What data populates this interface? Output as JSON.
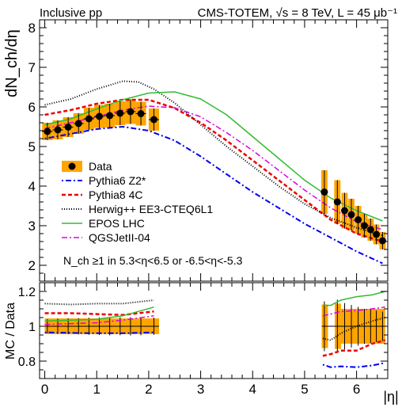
{
  "header": {
    "left": "Inclusive pp",
    "right": "CMS-TOTEM, √s = 8 TeV, L = 45 μb⁻¹"
  },
  "chart_data": [
    {
      "type": "line",
      "panel": "top",
      "ylabel": "dN_ch/dη",
      "xlim": [
        -0.1,
        6.6
      ],
      "ylim": [
        1.6,
        8.2
      ],
      "yticks": [
        "2",
        "3",
        "4",
        "5",
        "6",
        "7",
        "8"
      ],
      "annotation": "N_ch ≥1 in 5.3<η<6.5 or -6.5<η<-5.3",
      "legend_position": "middle-left",
      "data": {
        "name": "Data",
        "color": "#ffa500",
        "points": [
          {
            "x": 0.05,
            "y": 5.38,
            "sys": 0.22
          },
          {
            "x": 0.25,
            "y": 5.42,
            "sys": 0.24
          },
          {
            "x": 0.45,
            "y": 5.49,
            "sys": 0.25
          },
          {
            "x": 0.65,
            "y": 5.58,
            "sys": 0.26
          },
          {
            "x": 0.85,
            "y": 5.7,
            "sys": 0.28
          },
          {
            "x": 1.05,
            "y": 5.76,
            "sys": 0.29
          },
          {
            "x": 1.25,
            "y": 5.78,
            "sys": 0.3
          },
          {
            "x": 1.45,
            "y": 5.84,
            "sys": 0.3
          },
          {
            "x": 1.65,
            "y": 5.88,
            "sys": 0.31
          },
          {
            "x": 1.85,
            "y": 5.83,
            "sys": 0.3
          },
          {
            "x": 2.1,
            "y": 5.68,
            "sys": 0.28
          },
          {
            "x": 5.38,
            "y": 3.85,
            "sys": 0.55
          },
          {
            "x": 5.63,
            "y": 3.6,
            "sys": 0.55
          },
          {
            "x": 5.77,
            "y": 3.38,
            "sys": 0.45
          },
          {
            "x": 5.9,
            "y": 3.28,
            "sys": 0.4
          },
          {
            "x": 6.03,
            "y": 3.15,
            "sys": 0.35
          },
          {
            "x": 6.15,
            "y": 3.0,
            "sys": 0.3
          },
          {
            "x": 6.27,
            "y": 2.9,
            "sys": 0.28
          },
          {
            "x": 6.38,
            "y": 2.78,
            "sys": 0.25
          },
          {
            "x": 6.5,
            "y": 2.62,
            "sys": 0.22
          }
        ]
      },
      "series": [
        {
          "name": "Pythia6 Z2*",
          "color": "#0000ee",
          "dash": "2,3,7,3",
          "width": 2,
          "x": [
            0,
            0.5,
            1.0,
            1.5,
            2.0,
            2.5,
            3.0,
            3.5,
            4.0,
            4.5,
            5.0,
            5.5,
            6.0,
            6.5
          ],
          "y": [
            5.2,
            5.32,
            5.44,
            5.5,
            5.4,
            5.15,
            4.75,
            4.3,
            3.85,
            3.45,
            3.05,
            2.7,
            2.35,
            2.05
          ]
        },
        {
          "name": "Pythia8 4C",
          "color": "#ee0000",
          "dash": "5,3",
          "width": 2.5,
          "x": [
            0,
            0.5,
            1.0,
            1.5,
            2.0,
            2.5,
            3.0,
            3.5,
            4.0,
            4.5,
            5.0,
            5.5,
            6.0,
            6.5
          ],
          "y": [
            5.8,
            5.92,
            6.08,
            6.18,
            6.18,
            5.97,
            5.6,
            5.15,
            4.65,
            4.15,
            3.65,
            3.15,
            2.8,
            2.6
          ]
        },
        {
          "name": "Herwig++ EE3-CTEQ6L1",
          "color": "#000000",
          "dash": "1,2",
          "width": 2,
          "x": [
            0,
            0.5,
            1.0,
            1.5,
            1.8,
            2.1,
            2.5,
            3.0,
            3.5,
            4.0,
            4.5,
            5.0,
            5.5,
            6.0,
            6.5
          ],
          "y": [
            6.05,
            6.2,
            6.45,
            6.65,
            6.63,
            6.45,
            6.1,
            5.55,
            5.0,
            4.5,
            4.0,
            3.55,
            3.2,
            2.95,
            2.75
          ]
        },
        {
          "name": "EPOS LHC",
          "color": "#33bb33",
          "dash": "",
          "width": 1.5,
          "x": [
            0,
            0.5,
            1.0,
            1.5,
            2.0,
            2.5,
            3.0,
            3.5,
            4.0,
            4.5,
            5.0,
            5.5,
            6.0,
            6.5
          ],
          "y": [
            5.55,
            5.7,
            5.95,
            6.18,
            6.35,
            6.38,
            6.2,
            5.8,
            5.25,
            4.7,
            4.15,
            3.7,
            3.38,
            3.12
          ]
        },
        {
          "name": "QGSJetII-04",
          "color": "#dd00dd",
          "dash": "7,3,2,3",
          "width": 1.5,
          "x": [
            0,
            0.5,
            1.0,
            1.5,
            2.0,
            2.5,
            3.0,
            3.5,
            4.0,
            4.5,
            5.0,
            5.5,
            6.0,
            6.5
          ],
          "y": [
            5.45,
            5.6,
            5.75,
            5.92,
            6.02,
            5.98,
            5.75,
            5.35,
            4.9,
            4.4,
            3.9,
            3.45,
            3.1,
            2.9
          ]
        }
      ]
    },
    {
      "type": "line",
      "panel": "bottom",
      "ylabel": "MC / Data",
      "xlabel": "|η|",
      "xlim": [
        -0.1,
        6.6
      ],
      "ylim": [
        0.7,
        1.25
      ],
      "yticks": [
        "0.8",
        "1",
        "1.2"
      ],
      "xticks": [
        "0",
        "1",
        "2",
        "3",
        "4",
        "5",
        "6"
      ],
      "band": {
        "name": "Data",
        "color": "#ffa500",
        "regions": [
          {
            "x": [
              0.0,
              2.2
            ],
            "lo": 0.955,
            "hi": 1.045
          },
          {
            "x": [
              5.33,
              5.45
            ],
            "lo": 0.875,
            "hi": 1.125
          },
          {
            "x": [
              5.58,
              5.7
            ],
            "lo": 0.87,
            "hi": 1.13
          },
          {
            "x": [
              5.7,
              6.55
            ],
            "lo": 0.9,
            "hi": 1.1
          }
        ]
      },
      "ratio_series": [
        {
          "name": "Pythia6 Z2*",
          "x1": [
            0.0,
            0.5,
            1.0,
            1.5,
            2.1
          ],
          "y1": [
            0.965,
            0.962,
            0.96,
            0.96,
            0.965
          ],
          "x2": [
            5.35,
            5.5,
            5.7,
            6.0,
            6.3,
            6.55
          ],
          "y2": [
            0.78,
            0.765,
            0.77,
            0.765,
            0.775,
            0.79
          ]
        },
        {
          "name": "Pythia8 4C",
          "x1": [
            0.0,
            0.5,
            1.0,
            1.5,
            2.1
          ],
          "y1": [
            1.075,
            1.075,
            1.07,
            1.065,
            1.085
          ],
          "x2": [
            5.35,
            5.5,
            5.7,
            6.0,
            6.3,
            6.55
          ],
          "y2": [
            0.83,
            0.84,
            0.86,
            0.86,
            0.9,
            0.92
          ]
        },
        {
          "name": "Herwig++ EE3-CTEQ6L1",
          "x1": [
            0.0,
            0.5,
            1.0,
            1.5,
            2.1
          ],
          "y1": [
            1.13,
            1.125,
            1.13,
            1.13,
            1.15
          ],
          "x2": [
            5.35,
            5.5,
            5.7,
            6.0,
            6.3,
            6.55
          ],
          "y2": [
            0.93,
            0.92,
            0.96,
            1.0,
            1.03,
            1.05
          ]
        },
        {
          "name": "EPOS LHC",
          "x1": [
            0.0,
            0.5,
            1.0,
            1.5,
            2.1
          ],
          "y1": [
            1.03,
            1.035,
            1.04,
            1.06,
            1.11
          ],
          "x2": [
            5.35,
            5.5,
            5.7,
            6.0,
            6.3,
            6.55
          ],
          "y2": [
            1.12,
            1.12,
            1.15,
            1.17,
            1.18,
            1.2
          ]
        },
        {
          "name": "QGSJetII-04",
          "x1": [
            0.0,
            0.5,
            1.0,
            1.5,
            2.1
          ],
          "y1": [
            1.01,
            1.015,
            1.02,
            1.035,
            1.06
          ],
          "x2": [
            5.35,
            5.5,
            5.7,
            6.0,
            6.3,
            6.55
          ],
          "y2": [
            1.06,
            1.07,
            1.085,
            1.09,
            1.1,
            1.11
          ]
        }
      ]
    }
  ]
}
